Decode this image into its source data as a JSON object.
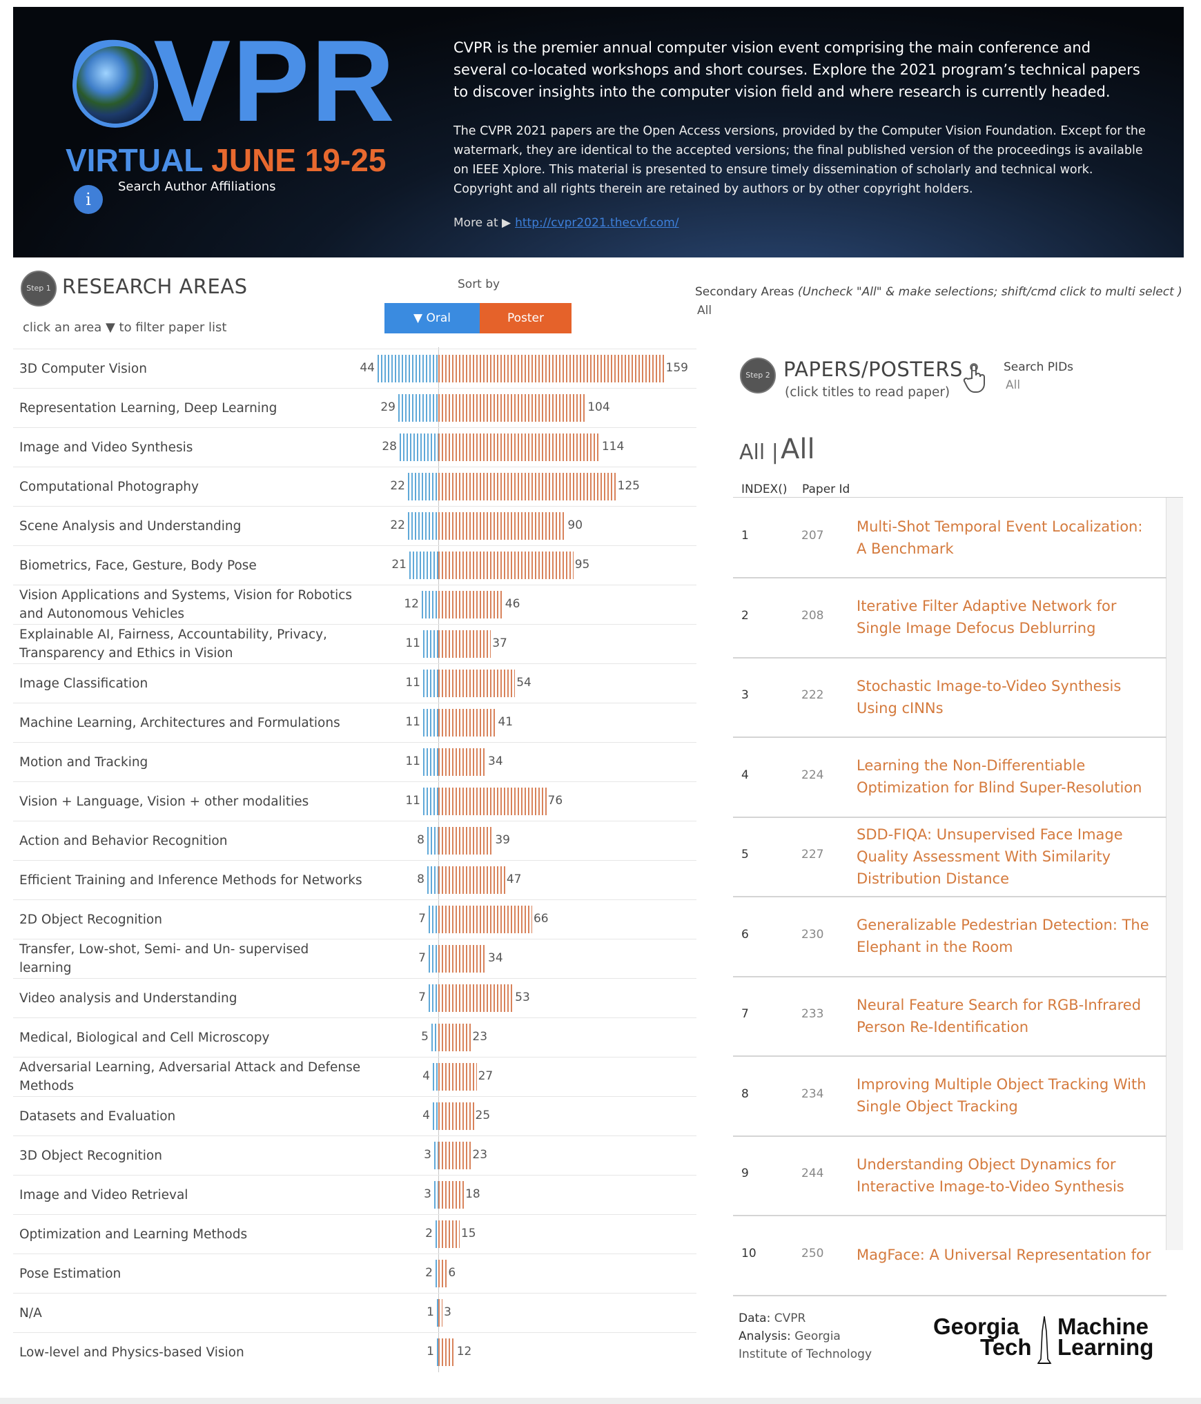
{
  "header": {
    "logo_main": "CVPR",
    "logo_virtual": "VIRTUAL",
    "logo_dates": "JUNE 19-25",
    "search_affiliations": "Search Author Affiliations",
    "info_icon": "i",
    "description": "CVPR is the premier annual computer vision event comprising the main conference and several co-located workshops and short courses. Explore the 2021 program’s technical papers to discover insights into the computer vision field and where research is currently headed.",
    "disclaimer": "The CVPR 2021 papers are the Open Access versions, provided by the Computer Vision Foundation. Except for the watermark, they are identical to the accepted versions; the final published version of the proceedings is available on IEEE Xplore. This material is presented to ensure timely dissemination of scholarly and technical work. Copyright and all rights therein are retained by authors or by other copyright holders.",
    "more_at": "More at ▶",
    "more_link": "http://cvpr2021.thecvf.com/"
  },
  "research_areas": {
    "step_badge": "Step 1",
    "title": "RESEARCH AREAS",
    "hint": "click an area ▼ to filter paper list",
    "sort_by": "Sort by",
    "sort_oral": "▼ Oral",
    "sort_poster": "Poster",
    "colors": {
      "oral": "#5fa8d8",
      "poster": "#d8825a",
      "sort_oral_bg": "#3a8be0",
      "sort_poster_bg": "#e5622a"
    }
  },
  "chart_data": {
    "type": "bar",
    "categories": [
      "3D Computer Vision",
      "Representation Learning, Deep Learning",
      "Image and Video Synthesis",
      "Computational Photography",
      "Scene Analysis and Understanding",
      "Biometrics, Face, Gesture, Body Pose",
      "Vision Applications and Systems, Vision for Robotics and Autonomous Vehicles",
      "Explainable AI, Fairness, Accountability, Privacy, Transparency and Ethics in Vision",
      "Image Classification",
      "Machine Learning, Architectures and Formulations",
      "Motion and Tracking",
      "Vision + Language, Vision + other modalities",
      "Action and Behavior Recognition",
      "Efficient Training and Inference Methods for Networks",
      "2D Object Recognition",
      "Transfer, Low-shot, Semi- and Un- supervised learning",
      "Video analysis and Understanding",
      "Medical, Biological and Cell Microscopy",
      "Adversarial Learning, Adversarial Attack and Defense Methods",
      "Datasets and Evaluation",
      "3D Object Recognition",
      "Image and Video Retrieval",
      "Optimization and Learning Methods",
      "Pose Estimation",
      "N/A",
      "Low-level and Physics-based Vision"
    ],
    "series": [
      {
        "name": "Oral",
        "values": [
          44,
          29,
          28,
          22,
          22,
          21,
          12,
          11,
          11,
          11,
          11,
          11,
          8,
          8,
          7,
          7,
          7,
          5,
          4,
          4,
          3,
          3,
          2,
          2,
          1,
          1
        ]
      },
      {
        "name": "Poster",
        "values": [
          159,
          104,
          114,
          125,
          90,
          95,
          46,
          37,
          54,
          41,
          34,
          76,
          39,
          47,
          66,
          34,
          53,
          23,
          27,
          25,
          23,
          18,
          15,
          6,
          3,
          12
        ]
      }
    ]
  },
  "secondary_areas": {
    "label": "Secondary Areas",
    "instruction": "(Uncheck \"All\" & make selections; shift/cmd click to multi select )",
    "value": "All"
  },
  "papers": {
    "step_badge": "Step 2",
    "title": "PAPERS/POSTERS",
    "hint": "(click titles to read paper)",
    "search_pids_label": "Search PIDs",
    "search_pids_value": "All",
    "filter_small": "All |",
    "filter_big": "All",
    "col_index": "INDEX()",
    "col_paper_id": "Paper Id",
    "rows": [
      {
        "index": "1",
        "id": "207",
        "title": "Multi-Shot Temporal Event Localization: A Benchmark"
      },
      {
        "index": "2",
        "id": "208",
        "title": "Iterative Filter Adaptive Network for Single Image Defocus Deblurring"
      },
      {
        "index": "3",
        "id": "222",
        "title": "Stochastic Image-to-Video Synthesis Using cINNs"
      },
      {
        "index": "4",
        "id": "224",
        "title": "Learning the Non-Differentiable Optimization for Blind Super-Resolution"
      },
      {
        "index": "5",
        "id": "227",
        "title": "SDD-FIQA: Unsupervised Face Image Quality Assessment With Similarity Distribution Distance"
      },
      {
        "index": "6",
        "id": "230",
        "title": "Generalizable Pedestrian Detection: The Elephant in the Room"
      },
      {
        "index": "7",
        "id": "233",
        "title": "Neural Feature Search for RGB-Infrared Person Re-Identification"
      },
      {
        "index": "8",
        "id": "234",
        "title": "Improving Multiple Object Tracking With Single Object Tracking"
      },
      {
        "index": "9",
        "id": "244",
        "title": "Understanding Object Dynamics for Interactive Image-to-Video Synthesis"
      },
      {
        "index": "10",
        "id": "250",
        "title": "MagFace: A Universal Representation for"
      }
    ]
  },
  "footer": {
    "data_key": "Data:",
    "data_val": "CVPR",
    "analysis_key": "Analysis:",
    "analysis_val": "Georgia Institute of Technology",
    "logo_line1": "Georgia Machine",
    "logo_georgia": "Georgia",
    "logo_tech": "Tech",
    "logo_machine": "Machine",
    "logo_learning": "Learning"
  }
}
